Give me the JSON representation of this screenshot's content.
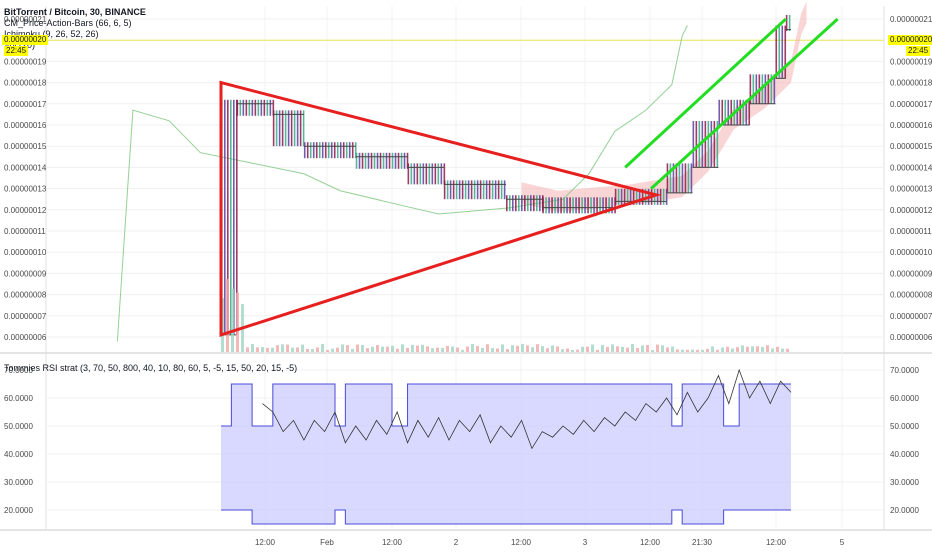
{
  "header": {
    "title": "BitTorrent / Bitcoin, 30, BINANCE",
    "indicators": [
      "CM_Price-Action-Bars (66, 6, 5)",
      "Ichimoku (9, 26, 52, 26)",
      "Vol (20)"
    ],
    "rsi_title": "Tommies RSI strat (3, 70, 50, 800, 40, 10, 80, 60, 5, -5, 15, 50, 20, 15, -5)"
  },
  "price_tag": {
    "value": "0.00000020",
    "time": "22:45"
  },
  "colors": {
    "triangle": "#e5201f",
    "channel": "#22dd22",
    "rsi_band": "#c9c9ff",
    "rsi_line": "#4b4bd6",
    "tag": "#ffff00",
    "cloud_red": "#f4b3b3",
    "cloud_green": "#b8e8b8"
  },
  "chart_data": [
    {
      "type": "line",
      "title": "BitTorrent / Bitcoin, 30, BINANCE",
      "y_ticks": [
        "0.00000021",
        "0.00000020",
        "0.00000019",
        "0.00000018",
        "0.00000017",
        "0.00000016",
        "0.00000015",
        "0.00000014",
        "0.00000013",
        "0.00000012",
        "0.00000011",
        "0.00000010",
        "0.00000009",
        "0.00000008",
        "0.00000007",
        "0.00000006"
      ],
      "x_ticks": [
        "12:00",
        "Feb",
        "12:00",
        "2",
        "12:00",
        "3",
        "12:00",
        "21:30",
        "12:00",
        "5"
      ],
      "ylim": [
        5.5e-08,
        2.115e-07
      ],
      "price_steps": [
        {
          "x": 0.0,
          "y": 6.1e-08
        },
        {
          "x": 0.3,
          "y": 1.7e-07
        },
        {
          "x": 1.0,
          "y": 1.65e-07
        },
        {
          "x": 1.6,
          "y": 1.5e-07
        },
        {
          "x": 2.6,
          "y": 1.45e-07
        },
        {
          "x": 3.6,
          "y": 1.4e-07
        },
        {
          "x": 4.3,
          "y": 1.32e-07
        },
        {
          "x": 5.5,
          "y": 1.25e-07
        },
        {
          "x": 6.2,
          "y": 1.21e-07
        },
        {
          "x": 7.6,
          "y": 1.24e-07
        },
        {
          "x": 8.6,
          "y": 1.28e-07
        },
        {
          "x": 9.1,
          "y": 1.4e-07
        },
        {
          "x": 9.6,
          "y": 1.6e-07
        },
        {
          "x": 10.2,
          "y": 1.7e-07
        },
        {
          "x": 10.7,
          "y": 1.82e-07
        },
        {
          "x": 10.9,
          "y": 2.05e-07
        },
        {
          "x": 11.0,
          "y": 2.1e-07
        }
      ],
      "triangle": [
        [
          0.0,
          1.8e-07
        ],
        [
          8.4,
          1.27e-07
        ],
        [
          0.0,
          6.1e-08
        ]
      ],
      "channel_upper": [
        [
          7.8,
          1.4e-07
        ],
        [
          10.9,
          2.1e-07
        ]
      ],
      "channel_lower": [
        [
          8.3,
          1.3e-07
        ],
        [
          11.9,
          2.1e-07
        ]
      ]
    },
    {
      "type": "area",
      "title": "Tommies RSI strat (3, 70, 50, 800, 40, 10, 80, 60, 5, -5, 15, 50, 20, 15, -5)",
      "y_ticks": [
        "70.0000",
        "60.0000",
        "50.0000",
        "40.0000",
        "30.0000",
        "20.0000"
      ],
      "ylim": [
        14,
        74
      ],
      "band_upper": [
        [
          0.0,
          50
        ],
        [
          0.2,
          65
        ],
        [
          0.6,
          50
        ],
        [
          1.0,
          65
        ],
        [
          2.1,
          65
        ],
        [
          2.2,
          50
        ],
        [
          2.4,
          65
        ],
        [
          3.2,
          65
        ],
        [
          3.3,
          50
        ],
        [
          3.6,
          65
        ],
        [
          6.0,
          65
        ],
        [
          6.1,
          65
        ],
        [
          8.6,
          65
        ],
        [
          8.7,
          50
        ],
        [
          8.9,
          65
        ],
        [
          9.6,
          65
        ],
        [
          9.7,
          50
        ],
        [
          10.0,
          65
        ],
        [
          11.0,
          65
        ]
      ],
      "band_lower": [
        [
          0.0,
          20
        ],
        [
          0.2,
          20
        ],
        [
          0.6,
          15
        ],
        [
          1.0,
          15
        ],
        [
          2.1,
          15
        ],
        [
          2.2,
          20
        ],
        [
          2.4,
          15
        ],
        [
          6.0,
          15
        ],
        [
          8.6,
          15
        ],
        [
          8.7,
          20
        ],
        [
          8.9,
          15
        ],
        [
          9.6,
          15
        ],
        [
          9.7,
          20
        ],
        [
          10.0,
          20
        ],
        [
          11.0,
          20
        ]
      ],
      "rsi": [
        [
          0.8,
          58
        ],
        [
          1.0,
          55
        ],
        [
          1.2,
          48
        ],
        [
          1.4,
          52
        ],
        [
          1.6,
          45
        ],
        [
          1.8,
          52
        ],
        [
          2.0,
          48
        ],
        [
          2.2,
          55
        ],
        [
          2.4,
          44
        ],
        [
          2.6,
          50
        ],
        [
          2.8,
          45
        ],
        [
          3.0,
          52
        ],
        [
          3.2,
          47
        ],
        [
          3.4,
          55
        ],
        [
          3.6,
          44
        ],
        [
          3.8,
          52
        ],
        [
          4.0,
          46
        ],
        [
          4.2,
          53
        ],
        [
          4.4,
          45
        ],
        [
          4.6,
          52
        ],
        [
          4.8,
          48
        ],
        [
          5.0,
          54
        ],
        [
          5.2,
          44
        ],
        [
          5.4,
          50
        ],
        [
          5.6,
          46
        ],
        [
          5.8,
          52
        ],
        [
          6.0,
          42
        ],
        [
          6.2,
          48
        ],
        [
          6.4,
          46
        ],
        [
          6.6,
          50
        ],
        [
          6.8,
          47
        ],
        [
          7.0,
          52
        ],
        [
          7.2,
          48
        ],
        [
          7.4,
          53
        ],
        [
          7.6,
          50
        ],
        [
          7.8,
          55
        ],
        [
          8.0,
          52
        ],
        [
          8.2,
          58
        ],
        [
          8.4,
          55
        ],
        [
          8.6,
          60
        ],
        [
          8.8,
          54
        ],
        [
          9.0,
          62
        ],
        [
          9.2,
          55
        ],
        [
          9.4,
          60
        ],
        [
          9.6,
          68
        ],
        [
          9.8,
          58
        ],
        [
          10.0,
          70
        ],
        [
          10.2,
          60
        ],
        [
          10.4,
          66
        ],
        [
          10.6,
          58
        ],
        [
          10.8,
          66
        ],
        [
          11.0,
          62
        ]
      ]
    }
  ],
  "plot": {
    "xmax": 12.6
  }
}
